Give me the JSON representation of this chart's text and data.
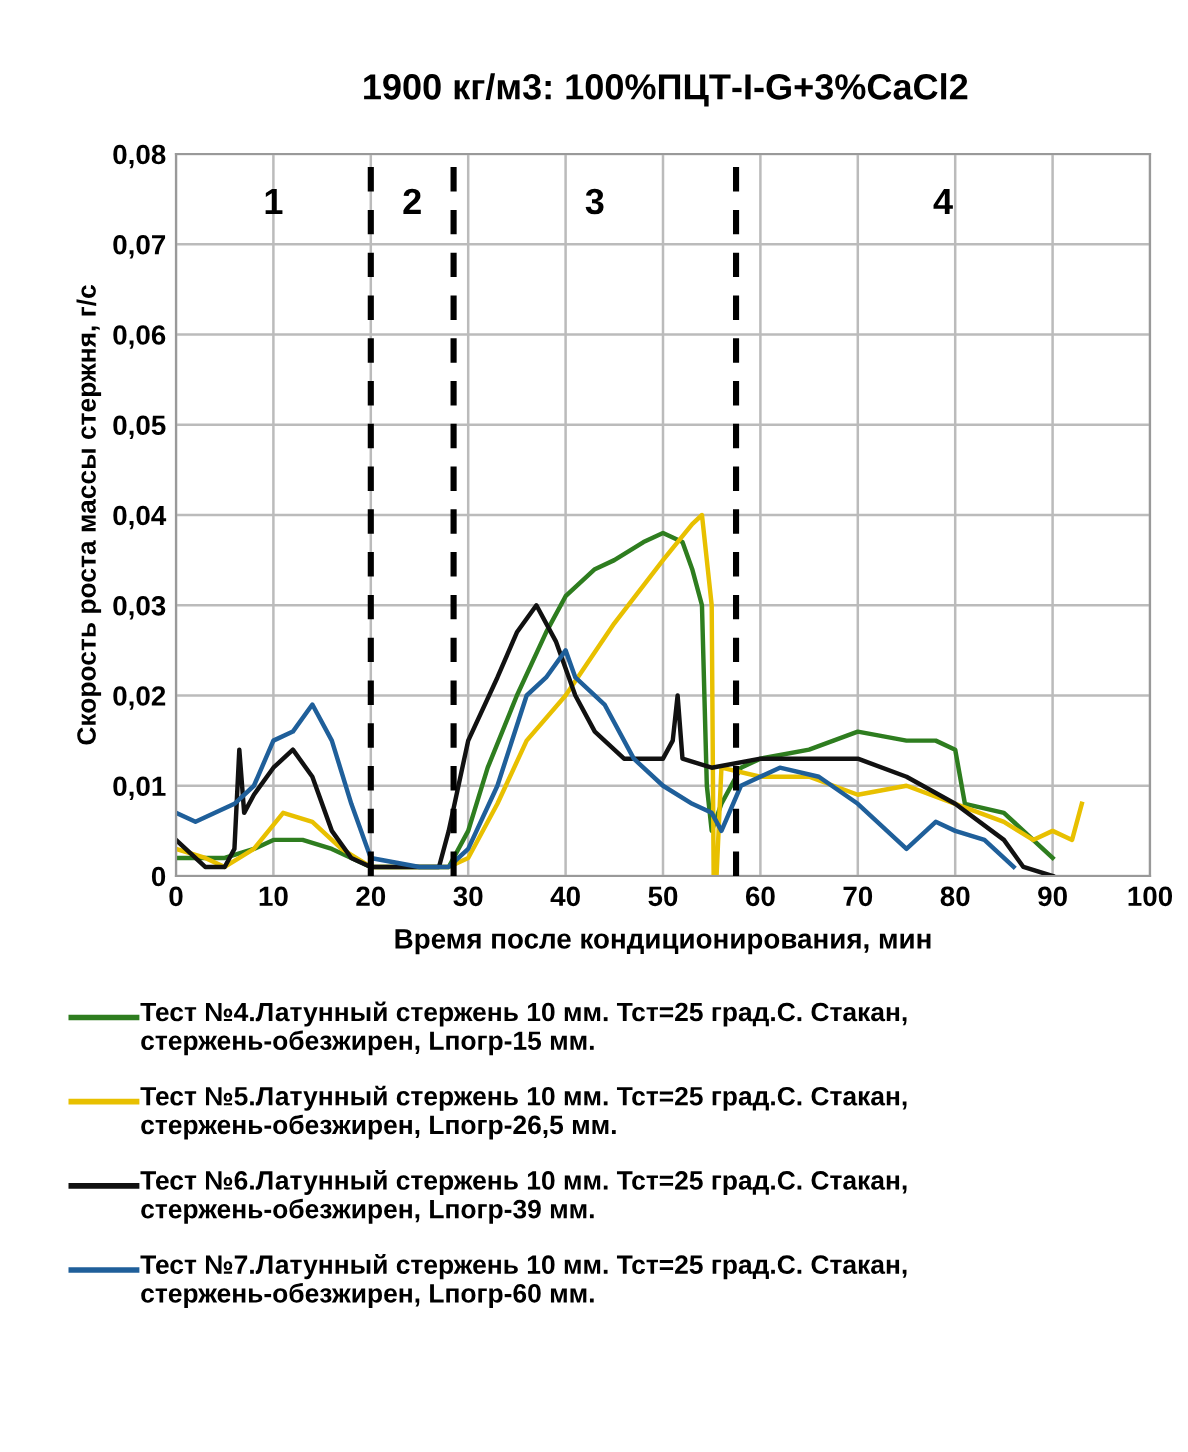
{
  "chart_data": {
    "type": "line",
    "title": "1900 кг/м3: 100%ПЦТ-I-G+3%CaCl2",
    "xlabel": "Время после кондиционирования, мин",
    "ylabel": "Скорость роста массы стержня, г/с",
    "xlim": [
      0,
      100
    ],
    "xticks": [
      0,
      10,
      20,
      30,
      40,
      50,
      60,
      70,
      80,
      90,
      100
    ],
    "ylim": [
      0,
      0.08
    ],
    "yticks": [
      0,
      {
        "value": 0.01,
        "label": "0,01"
      },
      {
        "value": 0.02,
        "label": "0,02"
      },
      {
        "value": 0.03,
        "label": "0,03"
      },
      {
        "value": 0.04,
        "label": "0,04"
      },
      {
        "value": 0.05,
        "label": "0,05"
      },
      {
        "value": 0.06,
        "label": "0,06"
      },
      {
        "value": 0.07,
        "label": "0,07"
      },
      {
        "value": 0.08,
        "label": "0,08"
      }
    ],
    "grid": true,
    "legend": "bottom",
    "marker": "none",
    "line_style": "solid",
    "ref_lines": [
      {
        "axis": "x",
        "value": 20,
        "color": "#000000",
        "line_style": "dashed"
      },
      {
        "axis": "x",
        "value": 28.5,
        "color": "#000000",
        "line_style": "dashed"
      },
      {
        "axis": "x",
        "value": 57.5,
        "color": "#000000",
        "line_style": "dashed"
      }
    ],
    "annotations": [
      "1",
      "2",
      "3",
      "4"
    ],
    "series": [
      {
        "name": "Тест №4.Латунный стержень 10 мм. Тст=25 град.С. Стакан, стержень-обезжирен, Lпогр-15 мм.",
        "color": "#2e7d1f",
        "x": [
          0,
          3,
          5,
          8,
          10,
          13,
          16,
          18,
          20,
          24,
          28,
          30,
          32,
          35,
          38,
          40,
          43,
          45,
          48,
          50,
          52,
          53,
          54,
          54.5,
          55,
          56,
          58,
          60,
          65,
          70,
          75,
          78,
          80,
          81,
          85,
          88,
          90
        ],
        "values": [
          0.002,
          0.002,
          0.002,
          0.003,
          0.004,
          0.004,
          0.003,
          0.002,
          0.001,
          0.001,
          0.001,
          0.005,
          0.012,
          0.02,
          0.027,
          0.031,
          0.034,
          0.035,
          0.037,
          0.038,
          0.037,
          0.034,
          0.03,
          0.01,
          0.005,
          0.008,
          0.012,
          0.013,
          0.014,
          0.016,
          0.015,
          0.015,
          0.014,
          0.008,
          0.007,
          0.004,
          0.002
        ]
      },
      {
        "name": "Тест №5.Латунный стержень 10 мм. Тст=25 град.С. Стакан, стержень-обезжирен, Lпогр-26,5 мм.",
        "color": "#e8c000",
        "x": [
          0,
          3,
          5,
          8,
          11,
          14,
          17,
          20,
          24,
          28,
          30,
          33,
          36,
          40,
          45,
          50,
          53,
          54,
          55,
          55.2,
          55.5,
          56,
          60,
          65,
          70,
          75,
          80,
          85,
          88,
          90,
          92,
          93
        ],
        "values": [
          0.003,
          0.002,
          0.001,
          0.003,
          0.007,
          0.006,
          0.003,
          0.001,
          0.001,
          0.001,
          0.002,
          0.008,
          0.015,
          0.02,
          0.028,
          0.035,
          0.039,
          0.04,
          0.03,
          0.0,
          0.0,
          0.012,
          0.011,
          0.011,
          0.009,
          0.01,
          0.008,
          0.006,
          0.004,
          0.005,
          0.004,
          0.008
        ]
      },
      {
        "name": "Тест №6.Латунный стержень 10 мм. Тст=25 град.С. Стакан, стержень-обезжирен, Lпогр-39 мм.",
        "color": "#111111",
        "x": [
          0,
          3,
          5,
          6,
          6.5,
          7,
          8,
          10,
          12,
          14,
          16,
          18,
          20,
          24,
          27,
          28,
          30,
          33,
          35,
          37,
          39,
          41,
          43,
          46,
          50,
          51,
          51.5,
          52,
          55,
          60,
          65,
          70,
          75,
          80,
          85,
          87,
          90
        ],
        "values": [
          0.004,
          0.001,
          0.001,
          0.003,
          0.014,
          0.007,
          0.009,
          0.012,
          0.014,
          0.011,
          0.005,
          0.002,
          0.001,
          0.001,
          0.001,
          0.005,
          0.015,
          0.022,
          0.027,
          0.03,
          0.026,
          0.02,
          0.016,
          0.013,
          0.013,
          0.015,
          0.02,
          0.013,
          0.012,
          0.013,
          0.013,
          0.013,
          0.011,
          0.008,
          0.004,
          0.001,
          0.0
        ]
      },
      {
        "name": "Тест №7.Латунный стержень 10 мм. Тст=25 град.С. Стакан, стержень-обезжирен, Lпогр-60 мм.",
        "color": "#1f5f9a",
        "x": [
          0,
          2,
          4,
          6,
          8,
          10,
          12,
          14,
          16,
          18,
          20,
          25,
          28,
          30,
          33,
          36,
          38,
          40,
          41,
          44,
          47,
          50,
          53,
          55,
          56,
          58,
          62,
          66,
          70,
          75,
          78,
          80,
          83,
          86
        ],
        "values": [
          0.007,
          0.006,
          0.007,
          0.008,
          0.01,
          0.015,
          0.016,
          0.019,
          0.015,
          0.008,
          0.002,
          0.001,
          0.001,
          0.003,
          0.01,
          0.02,
          0.022,
          0.025,
          0.022,
          0.019,
          0.013,
          0.01,
          0.008,
          0.007,
          0.005,
          0.01,
          0.012,
          0.011,
          0.008,
          0.003,
          0.006,
          0.005,
          0.004,
          0.001
        ]
      }
    ]
  }
}
